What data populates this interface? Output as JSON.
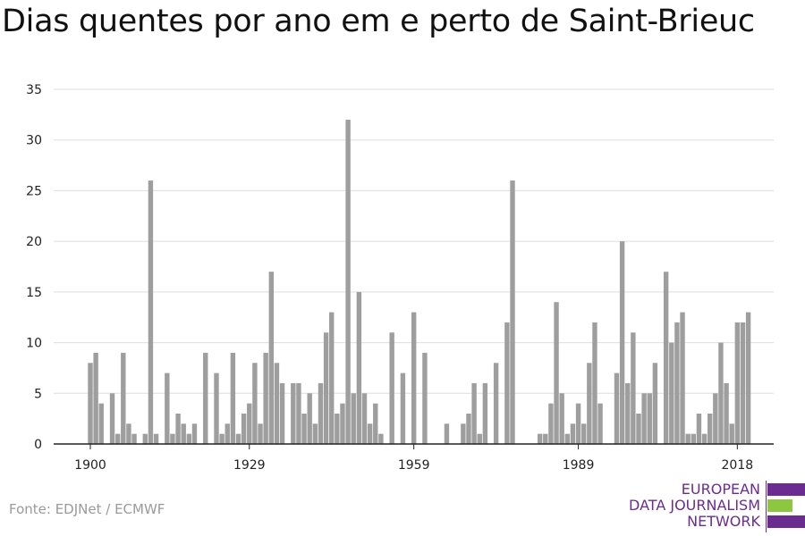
{
  "title": "Dias quentes por ano em e perto de Saint-Brieuc",
  "source": "Fonte: EDJNet / ECMWF",
  "logo": {
    "line1": "EUROPEAN",
    "line2": "DATA JOURNALISM",
    "line3": "NETWORK",
    "color_purple": "#6b2c91",
    "color_green": "#8dc63f"
  },
  "colors": {
    "bar": "#9e9e9e",
    "grid": "#dddddd",
    "axis": "#222222"
  },
  "chart_data": {
    "type": "bar",
    "title": "Dias quentes por ano em e perto de Saint-Brieuc",
    "xlabel": "",
    "ylabel": "",
    "ylim": [
      0,
      35
    ],
    "yticks": [
      0,
      5,
      10,
      15,
      20,
      25,
      30,
      35
    ],
    "xticks": [
      1900,
      1929,
      1959,
      1989,
      2018
    ],
    "x_start": 1900,
    "values": [
      8,
      9,
      4,
      0,
      5,
      1,
      9,
      2,
      1,
      0,
      1,
      26,
      1,
      0,
      7,
      1,
      3,
      2,
      1,
      2,
      0,
      9,
      0,
      7,
      1,
      2,
      9,
      1,
      3,
      4,
      8,
      2,
      9,
      17,
      8,
      6,
      0,
      6,
      6,
      3,
      5,
      2,
      6,
      11,
      13,
      3,
      4,
      32,
      5,
      15,
      5,
      2,
      4,
      1,
      0,
      11,
      0,
      7,
      0,
      13,
      0,
      9,
      0,
      0,
      0,
      2,
      0,
      0,
      2,
      3,
      6,
      1,
      6,
      0,
      8,
      0,
      12,
      26,
      0,
      0,
      0,
      0,
      1,
      1,
      4,
      14,
      5,
      1,
      2,
      4,
      2,
      8,
      12,
      4,
      0,
      0,
      7,
      20,
      6,
      11,
      3,
      5,
      5,
      8,
      0,
      17,
      10,
      12,
      13,
      1,
      1,
      3,
      1,
      3,
      5,
      10,
      6,
      2,
      12,
      12,
      13
    ],
    "grid": true,
    "legend": "none"
  }
}
